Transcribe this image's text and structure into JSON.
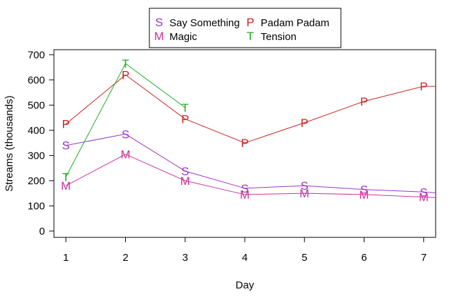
{
  "chart_data": {
    "type": "line",
    "title": "",
    "xlabel": "Day",
    "ylabel": "Streams (thousands)",
    "x": [
      1,
      2,
      3,
      4,
      5,
      6,
      7
    ],
    "x_ticks": [
      "1",
      "2",
      "3",
      "4",
      "5",
      "6",
      "7"
    ],
    "y_ticks": [
      "0",
      "100",
      "200",
      "300",
      "400",
      "500",
      "600",
      "700"
    ],
    "xlim": [
      0.8,
      7.2
    ],
    "ylim": [
      -25,
      720
    ],
    "grid": false,
    "legend_position": "top-center",
    "series": [
      {
        "name": "Say Something",
        "symbol": "S",
        "color": "#9933cc",
        "x": [
          1,
          2,
          3,
          4,
          5,
          6,
          7
        ],
        "values": [
          340,
          385,
          238,
          170,
          180,
          165,
          155
        ],
        "trailing": [
          7.2,
          152
        ]
      },
      {
        "name": "Padam Padam",
        "symbol": "P",
        "color": "#cc2222",
        "x": [
          1,
          2,
          3,
          4,
          5,
          6,
          7
        ],
        "values": [
          425,
          620,
          445,
          350,
          430,
          515,
          575
        ],
        "trailing": [
          7.2,
          574
        ]
      },
      {
        "name": "Magic",
        "symbol": "M",
        "color": "#cc3399",
        "x": [
          1,
          2,
          3,
          4,
          5,
          6,
          7
        ],
        "values": [
          180,
          305,
          200,
          145,
          150,
          145,
          135
        ],
        "trailing": [
          7.2,
          133
        ]
      },
      {
        "name": "Tension",
        "symbol": "T",
        "color": "#22aa22",
        "x": [
          1,
          2,
          3
        ],
        "values": [
          215,
          665,
          490
        ],
        "trailing": null
      }
    ]
  }
}
